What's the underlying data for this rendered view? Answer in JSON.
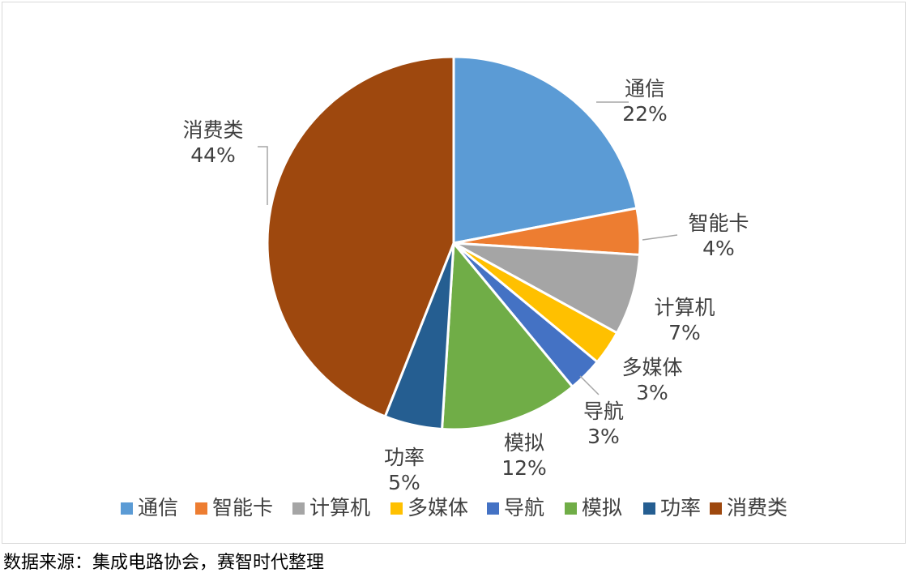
{
  "chart_data": {
    "type": "pie",
    "categories": [
      "通信",
      "智能卡",
      "计算机",
      "多媒体",
      "导航",
      "模拟",
      "功率",
      "消费类"
    ],
    "values": [
      22,
      4,
      7,
      3,
      3,
      12,
      5,
      44
    ],
    "labels": [
      "22%",
      "4%",
      "7%",
      "3%",
      "3%",
      "12%",
      "5%",
      "44%"
    ],
    "colors": [
      "#5b9bd5",
      "#ed7d31",
      "#a5a5a5",
      "#ffc000",
      "#4472c4",
      "#70ad47",
      "#255e91",
      "#9e480e"
    ],
    "title": "",
    "legend_position": "bottom",
    "start_angle": "12 o'clock, clockwise"
  },
  "footer": {
    "source": "数据来源：集成电路协会，赛智时代整理"
  }
}
